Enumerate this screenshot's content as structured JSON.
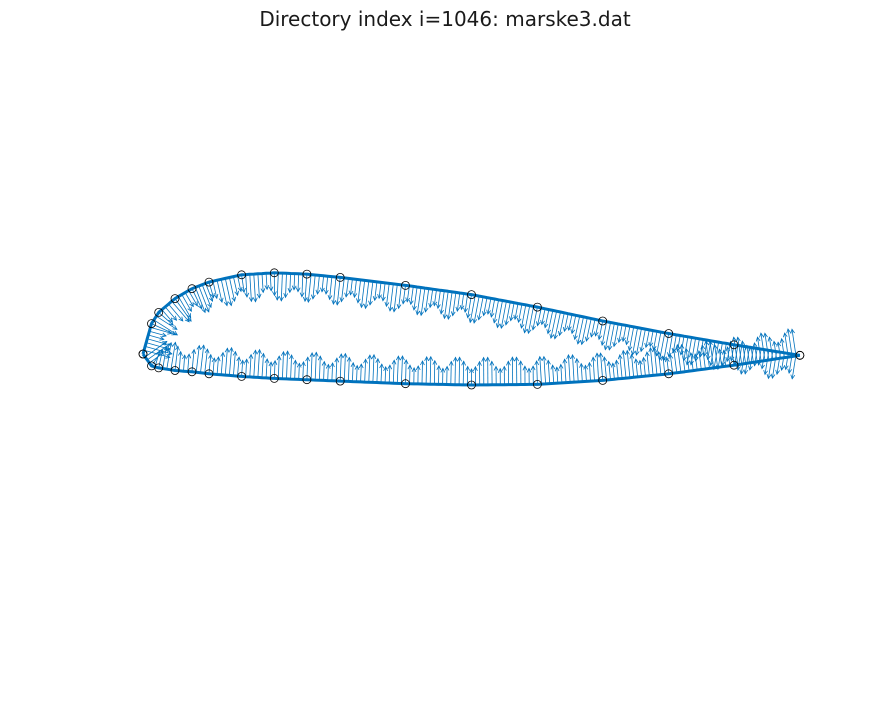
{
  "figure": {
    "title": "Directory index i=1046: marske3.dat"
  },
  "colors": {
    "airfoil": "#0072BD",
    "marker": "#000000",
    "background": "#ffffff"
  },
  "chart_data": {
    "type": "airfoil-normal-vectors",
    "upper_surface_control_points": [
      [
        0.0,
        0.0
      ],
      [
        0.013,
        0.046
      ],
      [
        0.024,
        0.063
      ],
      [
        0.049,
        0.084
      ],
      [
        0.075,
        0.099
      ],
      [
        0.101,
        0.109
      ],
      [
        0.151,
        0.12
      ],
      [
        0.201,
        0.123
      ],
      [
        0.251,
        0.121
      ],
      [
        0.302,
        0.116
      ],
      [
        0.402,
        0.104
      ],
      [
        0.503,
        0.09
      ],
      [
        0.604,
        0.071
      ],
      [
        0.704,
        0.05
      ],
      [
        0.805,
        0.031
      ],
      [
        0.905,
        0.014
      ],
      [
        1.006,
        -0.002
      ]
    ],
    "lower_surface_control_points": [
      [
        0.0,
        0.0
      ],
      [
        0.013,
        -0.018
      ],
      [
        0.024,
        -0.021
      ],
      [
        0.049,
        -0.025
      ],
      [
        0.075,
        -0.027
      ],
      [
        0.101,
        -0.03
      ],
      [
        0.151,
        -0.034
      ],
      [
        0.201,
        -0.037
      ],
      [
        0.251,
        -0.039
      ],
      [
        0.302,
        -0.041
      ],
      [
        0.402,
        -0.045
      ],
      [
        0.503,
        -0.047
      ],
      [
        0.604,
        -0.046
      ],
      [
        0.704,
        -0.04
      ],
      [
        0.805,
        -0.03
      ],
      [
        0.905,
        -0.017
      ],
      [
        1.006,
        -0.002
      ]
    ],
    "axes_visible": false
  }
}
